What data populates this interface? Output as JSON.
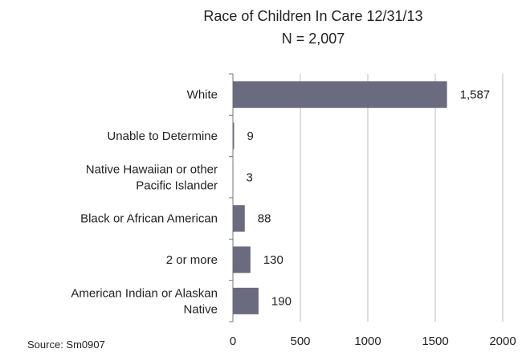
{
  "chart_data": {
    "type": "bar",
    "orientation": "horizontal",
    "title": "Race of Children  In Care 12/31/13",
    "subtitle": "N = 2,007",
    "categories": [
      "White",
      "Unable to Determine",
      "Native Hawaiian or other Pacific Islander",
      "Black or African American",
      "2 or more",
      "American Indian or Alaskan Native"
    ],
    "category_lines": [
      [
        "White"
      ],
      [
        "Unable to Determine"
      ],
      [
        "Native Hawaiian or other",
        "Pacific Islander"
      ],
      [
        "Black or African American"
      ],
      [
        "2 or more"
      ],
      [
        "American Indian or Alaskan",
        "Native"
      ]
    ],
    "values": [
      1587,
      9,
      3,
      88,
      130,
      190
    ],
    "value_labels": [
      "1,587",
      "9",
      "3",
      "88",
      "130",
      "190"
    ],
    "xlim": [
      0,
      2000
    ],
    "xticks": [
      0,
      500,
      1000,
      1500,
      2000
    ],
    "grid": "vertical",
    "legend": "none",
    "bar_color": "#6b6b7f",
    "source": "Source: Sm0907"
  }
}
